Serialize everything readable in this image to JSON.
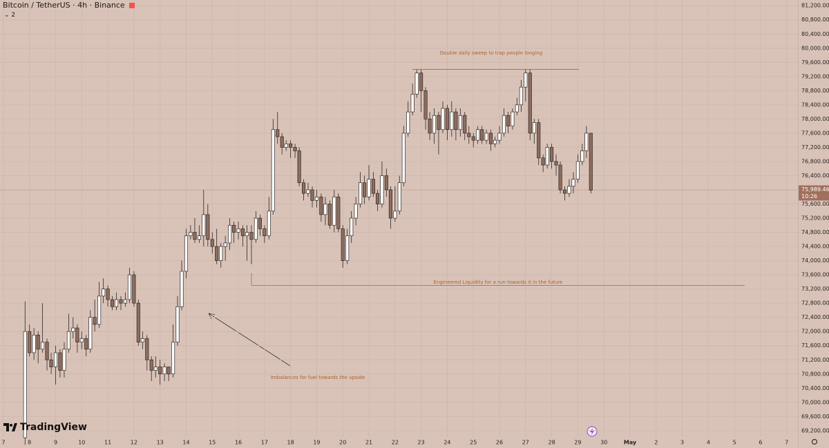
{
  "chart_data": {
    "type": "candlestick",
    "title": "Bitcoin / TetherUS · 4h · Binance",
    "collapsed_count": "2",
    "watermark": "TradingView",
    "x": [
      7.83,
      8,
      8.17,
      8.33,
      8.5,
      8.67,
      8.83,
      9,
      9.17,
      9.33,
      9.5,
      9.67,
      9.83,
      10,
      10.17,
      10.33,
      10.5,
      10.67,
      10.83,
      11,
      11.17,
      11.33,
      11.5,
      11.67,
      11.83,
      12,
      12.17,
      12.33,
      12.5,
      12.67,
      12.83,
      13,
      13.17,
      13.33,
      13.5,
      13.67,
      13.83,
      14,
      14.17,
      14.33,
      14.5,
      14.67,
      14.83,
      15,
      15.17,
      15.33,
      15.5,
      15.67,
      15.83,
      16,
      16.17,
      16.33,
      16.5,
      16.67,
      16.83,
      17,
      17.17,
      17.33,
      17.5,
      17.67,
      17.83,
      18,
      18.17,
      18.33,
      18.5,
      18.67,
      18.83,
      19,
      19.17,
      19.33,
      19.5,
      19.67,
      19.83,
      20,
      20.17,
      20.33,
      20.5,
      20.67,
      20.83,
      21,
      21.17,
      21.33,
      21.5,
      21.67,
      21.83,
      22,
      22.17,
      22.33,
      22.5,
      22.67,
      22.83,
      23,
      23.17,
      23.33,
      23.5,
      23.67,
      23.83,
      24,
      24.17,
      24.33,
      24.5,
      24.67,
      24.83,
      25,
      25.17,
      25.33,
      25.5,
      25.67,
      25.83,
      26,
      26.17,
      26.33,
      26.5,
      26.67,
      26.83,
      27,
      27.17,
      27.33,
      27.5,
      27.67,
      27.83,
      28,
      28.17,
      28.33,
      28.5,
      28.67,
      28.83,
      29,
      29.17,
      29.33,
      29.5
    ],
    "open": [
      69000,
      72000,
      71400,
      71900,
      71500,
      71700,
      71200,
      71000,
      71400,
      70900,
      71500,
      72000,
      72100,
      71700,
      71800,
      71500,
      72400,
      72200,
      73000,
      73200,
      72900,
      72700,
      72900,
      72800,
      72900,
      73600,
      72800,
      71700,
      71800,
      71200,
      70900,
      71000,
      70800,
      71000,
      70800,
      71700,
      72700,
      73700,
      74700,
      74800,
      74600,
      74700,
      75300,
      74600,
      74400,
      74000,
      74400,
      74500,
      75000,
      74800,
      74900,
      74700,
      74800,
      74600,
      75200,
      74900,
      74700,
      75400,
      77700,
      77500,
      77200,
      77300,
      77200,
      77100,
      76200,
      75900,
      76000,
      75700,
      75800,
      75300,
      75600,
      75000,
      75800,
      74900,
      74000,
      74700,
      75200,
      75600,
      76200,
      75800,
      76300,
      75900,
      75600,
      76400,
      76000,
      75200,
      75400,
      76200,
      77600,
      78200,
      78700,
      79300,
      78800,
      78000,
      77600,
      78100,
      77700,
      78300,
      77700,
      78200,
      77700,
      78100,
      77600,
      77500,
      77400,
      77700,
      77400,
      77600,
      77300,
      77400,
      77600,
      78100,
      77800,
      78200,
      78400,
      78900,
      79300,
      77600,
      77900,
      76900,
      76700,
      77200,
      76800,
      76700,
      76000,
      75900,
      76100,
      76300,
      76800,
      77100,
      77600
    ],
    "high": [
      72850,
      72200,
      72100,
      72000,
      72800,
      71800,
      71400,
      71600,
      71500,
      71700,
      72500,
      72400,
      72200,
      72000,
      71900,
      72600,
      72900,
      73400,
      73500,
      73300,
      73000,
      73100,
      73000,
      73100,
      73800,
      73700,
      72900,
      72000,
      71900,
      71300,
      71300,
      71200,
      71100,
      71000,
      72200,
      73000,
      74000,
      74900,
      75000,
      75200,
      75000,
      76000,
      75600,
      74800,
      74900,
      74500,
      74700,
      75200,
      75100,
      75100,
      75000,
      75000,
      75000,
      75400,
      75300,
      75000,
      75800,
      78000,
      78200,
      77600,
      77400,
      77400,
      77300,
      77200,
      76300,
      76200,
      76100,
      76000,
      75900,
      75800,
      75700,
      76000,
      75900,
      75000,
      74900,
      75400,
      75800,
      76500,
      76400,
      76700,
      76500,
      76000,
      76800,
      76600,
      76100,
      76100,
      76400,
      77800,
      78500,
      79000,
      79400,
      79400,
      78900,
      78200,
      78300,
      78200,
      78500,
      78400,
      78500,
      78300,
      78300,
      78200,
      77800,
      77600,
      77800,
      77800,
      77700,
      77700,
      77500,
      77800,
      78300,
      78200,
      78300,
      78600,
      79100,
      79400,
      79400,
      78000,
      78000,
      77000,
      77300,
      77300,
      77000,
      76800,
      76100,
      76300,
      76500,
      77000,
      77300,
      77800,
      77600
    ],
    "low": [
      68800,
      71300,
      71200,
      71100,
      71400,
      70900,
      70800,
      70500,
      70700,
      70700,
      71400,
      71800,
      71400,
      71500,
      71300,
      71400,
      72000,
      72100,
      72800,
      72700,
      72600,
      72600,
      72600,
      72700,
      72800,
      72700,
      71600,
      71500,
      70900,
      70600,
      70700,
      70500,
      70600,
      70600,
      70700,
      71600,
      72600,
      73500,
      74600,
      74500,
      74500,
      74400,
      74400,
      74200,
      73900,
      73800,
      74000,
      74300,
      74500,
      74600,
      74400,
      74000,
      73900,
      74500,
      74700,
      74500,
      74600,
      75300,
      77300,
      77000,
      77100,
      76900,
      76900,
      76100,
      75700,
      75800,
      75500,
      75500,
      75100,
      75000,
      74900,
      74800,
      74800,
      73800,
      73900,
      74500,
      75000,
      75500,
      75600,
      75700,
      75800,
      75400,
      75500,
      75800,
      74900,
      75100,
      75300,
      76100,
      77500,
      78100,
      78600,
      78200,
      77700,
      77400,
      77300,
      77000,
      77600,
      77400,
      77500,
      77400,
      77500,
      77400,
      77300,
      77200,
      77300,
      77300,
      77300,
      77100,
      77200,
      77300,
      77500,
      77600,
      77700,
      78100,
      78200,
      78500,
      77400,
      77300,
      76700,
      76500,
      76600,
      76600,
      76400,
      75900,
      75700,
      75800,
      75900,
      76200,
      76700,
      76900,
      75900
    ],
    "close": [
      72000,
      71400,
      71900,
      71500,
      71700,
      71200,
      71000,
      71400,
      70900,
      71500,
      72000,
      72100,
      71700,
      71800,
      71500,
      72400,
      72200,
      73000,
      73200,
      72900,
      72700,
      72900,
      72800,
      72900,
      73600,
      72800,
      71700,
      71800,
      71200,
      70900,
      71000,
      70800,
      71000,
      70800,
      71700,
      72700,
      73700,
      74700,
      74800,
      74600,
      74700,
      75300,
      74600,
      74400,
      74000,
      74400,
      74500,
      75000,
      74800,
      74900,
      74700,
      74800,
      74600,
      75200,
      74900,
      74700,
      75400,
      77700,
      77500,
      77200,
      77300,
      77200,
      77100,
      76200,
      75900,
      76000,
      75700,
      75800,
      75300,
      75600,
      75000,
      75800,
      74900,
      74000,
      74700,
      75200,
      75600,
      76200,
      75800,
      76300,
      75900,
      75600,
      76400,
      76000,
      75200,
      75400,
      76200,
      77600,
      78200,
      78700,
      79300,
      78800,
      78000,
      77600,
      78100,
      77700,
      78300,
      77700,
      78200,
      77700,
      78100,
      77600,
      77500,
      77400,
      77700,
      77400,
      77600,
      77300,
      77400,
      77600,
      78100,
      77800,
      78200,
      78400,
      78900,
      79300,
      77600,
      77900,
      76900,
      76700,
      77200,
      76800,
      76700,
      76000,
      75900,
      76100,
      76300,
      76800,
      77100,
      77600,
      75989.46
    ],
    "up_color": "#ffffff",
    "down_color": "#8f6d5e",
    "xlim": [
      6.87,
      37.43
    ],
    "ylim": [
      68710,
      81360
    ],
    "xticks": [
      7,
      8,
      9,
      10,
      11,
      12,
      13,
      14,
      15,
      16,
      17,
      18,
      19,
      20,
      21,
      22,
      23,
      24,
      25,
      26,
      27,
      28,
      29,
      30,
      {
        "value": 31,
        "label": "May"
      },
      {
        "value": 32,
        "label": "2"
      },
      {
        "value": 33,
        "label": "3"
      },
      {
        "value": 34,
        "label": "4"
      },
      {
        "value": 35,
        "label": "5"
      },
      {
        "value": 36,
        "label": "6"
      },
      {
        "value": 37,
        "label": "7"
      }
    ],
    "yticks": [
      {
        "value": 69200,
        "label": "69,200.00"
      },
      {
        "value": 69600,
        "label": "69,600.00"
      },
      {
        "value": 70000,
        "label": "70,000.00"
      },
      {
        "value": 70400,
        "label": "70,400.00"
      },
      {
        "value": 70800,
        "label": "70,800.00"
      },
      {
        "value": 71200,
        "label": "71,200.00"
      },
      {
        "value": 71600,
        "label": "71,600.00"
      },
      {
        "value": 72000,
        "label": "72,000.00"
      },
      {
        "value": 72400,
        "label": "72,400.00"
      },
      {
        "value": 72800,
        "label": "72,800.00"
      },
      {
        "value": 73200,
        "label": "73,200.00"
      },
      {
        "value": 73600,
        "label": "73,600.00"
      },
      {
        "value": 74000,
        "label": "74,000.00"
      },
      {
        "value": 74400,
        "label": "74,400.00"
      },
      {
        "value": 74800,
        "label": "74,800.00"
      },
      {
        "value": 75200,
        "label": "75,200.00"
      },
      {
        "value": 75600,
        "label": "75,600.00"
      },
      {
        "value": 76000,
        "label": "76,000.00"
      },
      {
        "value": 76400,
        "label": "76,400.00"
      },
      {
        "value": 76800,
        "label": "76,800.00"
      },
      {
        "value": 77200,
        "label": "77,200.00"
      },
      {
        "value": 77600,
        "label": "77,600.00"
      },
      {
        "value": 78000,
        "label": "78,000.00"
      },
      {
        "value": 78400,
        "label": "78,400.00"
      },
      {
        "value": 78800,
        "label": "78,800.00"
      },
      {
        "value": 79200,
        "label": "79,200.00"
      },
      {
        "value": 79600,
        "label": "79,600.00"
      },
      {
        "value": 80000,
        "label": "80,000.00"
      },
      {
        "value": 80400,
        "label": "80,400.00"
      },
      {
        "value": 80800,
        "label": "80,800.00"
      },
      {
        "value": 81200,
        "label": "81,200.00"
      }
    ],
    "grid": true,
    "last_price": {
      "value": 75989.46,
      "label": "75,989.46"
    },
    "countdown": "10:26",
    "annotations": [
      {
        "text": "Double daily sweep to trap people longing",
        "level": 79400
      },
      {
        "text": "Engineered Liquidity for a run towards it in the future",
        "level": 73300
      },
      {
        "text": "Imbalances for fuel towards the upside"
      }
    ]
  }
}
